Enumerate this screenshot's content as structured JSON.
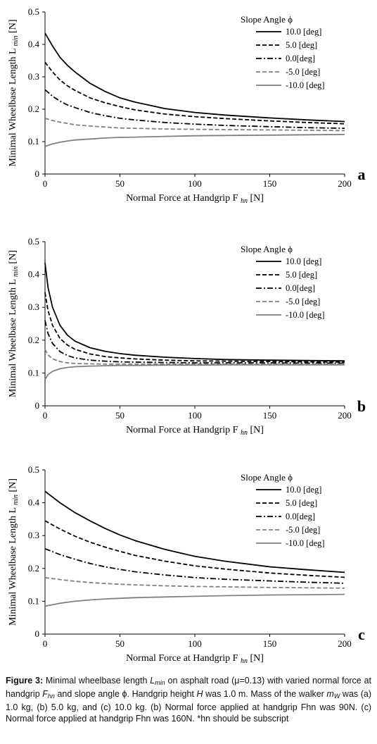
{
  "chart_data": [
    {
      "type": "line",
      "panel_label": "a",
      "xlabel": "Normal Force at Handgrip F",
      "xlabel_sub": "hn",
      "xlabel_unit": "[N]",
      "ylabel": "Minimal Wheelbase Length L",
      "ylabel_sub": "min",
      "ylabel_unit": "[N]",
      "xlim": [
        0,
        200
      ],
      "ylim": [
        0,
        0.5
      ],
      "xticks": [
        0,
        50,
        100,
        150,
        200
      ],
      "yticks": [
        0,
        0.1,
        0.2,
        0.3,
        0.4,
        0.5
      ],
      "legend_title": "Slope Angle ϕ",
      "legend_position": "top-right",
      "grid": false,
      "x": [
        0,
        5,
        10,
        15,
        20,
        30,
        40,
        50,
        60,
        80,
        100,
        120,
        150,
        175,
        200
      ],
      "series": [
        {
          "name": "10.0 [deg]",
          "style": "solid",
          "color": "#000000",
          "values": [
            0.435,
            0.395,
            0.36,
            0.335,
            0.315,
            0.28,
            0.255,
            0.235,
            0.222,
            0.202,
            0.19,
            0.182,
            0.173,
            0.167,
            0.162
          ]
        },
        {
          "name": "5.0 [deg]",
          "style": "dashed",
          "color": "#000000",
          "values": [
            0.345,
            0.315,
            0.29,
            0.272,
            0.258,
            0.235,
            0.22,
            0.208,
            0.198,
            0.185,
            0.177,
            0.171,
            0.164,
            0.159,
            0.155
          ]
        },
        {
          "name": "0.0[deg]",
          "style": "dashdot",
          "color": "#000000",
          "values": [
            0.26,
            0.24,
            0.225,
            0.213,
            0.205,
            0.19,
            0.18,
            0.172,
            0.167,
            0.159,
            0.154,
            0.15,
            0.146,
            0.143,
            0.141
          ]
        },
        {
          "name": "-5.0 [deg]",
          "style": "dashed",
          "color": "#808080",
          "values": [
            0.172,
            0.165,
            0.16,
            0.156,
            0.152,
            0.148,
            0.145,
            0.142,
            0.141,
            0.139,
            0.138,
            0.137,
            0.136,
            0.135,
            0.134
          ]
        },
        {
          "name": "-10.0 [deg]",
          "style": "solid",
          "color": "#808080",
          "values": [
            0.085,
            0.093,
            0.098,
            0.102,
            0.105,
            0.108,
            0.111,
            0.113,
            0.114,
            0.116,
            0.118,
            0.119,
            0.12,
            0.121,
            0.122
          ]
        }
      ]
    },
    {
      "type": "line",
      "panel_label": "b",
      "xlabel": "Normal Force at Handgrip F",
      "xlabel_sub": "hn",
      "xlabel_unit": "[N]",
      "ylabel": "Minimal Wheelbase Length L",
      "ylabel_sub": "min",
      "ylabel_unit": "[N]",
      "xlim": [
        0,
        200
      ],
      "ylim": [
        0,
        0.5
      ],
      "xticks": [
        0,
        50,
        100,
        150,
        200
      ],
      "yticks": [
        0,
        0.1,
        0.2,
        0.3,
        0.4,
        0.5
      ],
      "legend_title": "Slope Angle ϕ",
      "legend_position": "top-right",
      "grid": false,
      "x": [
        0,
        2,
        5,
        10,
        15,
        20,
        30,
        40,
        50,
        60,
        80,
        100,
        120,
        150,
        175,
        200
      ],
      "series": [
        {
          "name": "10.0 [deg]",
          "style": "solid",
          "color": "#000000",
          "values": [
            0.435,
            0.36,
            0.3,
            0.245,
            0.215,
            0.197,
            0.177,
            0.166,
            0.159,
            0.154,
            0.148,
            0.144,
            0.141,
            0.139,
            0.138,
            0.137
          ]
        },
        {
          "name": "5.0 [deg]",
          "style": "dashed",
          "color": "#000000",
          "values": [
            0.345,
            0.29,
            0.245,
            0.205,
            0.185,
            0.172,
            0.158,
            0.15,
            0.146,
            0.143,
            0.139,
            0.137,
            0.136,
            0.135,
            0.134,
            0.133
          ]
        },
        {
          "name": "0.0[deg]",
          "style": "dashdot",
          "color": "#000000",
          "values": [
            0.26,
            0.22,
            0.19,
            0.165,
            0.153,
            0.146,
            0.139,
            0.136,
            0.134,
            0.133,
            0.132,
            0.131,
            0.131,
            0.131,
            0.13,
            0.13
          ]
        },
        {
          "name": "-5.0 [deg]",
          "style": "dashed",
          "color": "#808080",
          "values": [
            0.172,
            0.155,
            0.143,
            0.135,
            0.131,
            0.129,
            0.128,
            0.127,
            0.127,
            0.127,
            0.127,
            0.127,
            0.127,
            0.127,
            0.127,
            0.127
          ]
        },
        {
          "name": "-10.0 [deg]",
          "style": "solid",
          "color": "#808080",
          "values": [
            0.08,
            0.095,
            0.105,
            0.113,
            0.117,
            0.119,
            0.121,
            0.122,
            0.123,
            0.123,
            0.124,
            0.124,
            0.125,
            0.125,
            0.125,
            0.125
          ]
        }
      ]
    },
    {
      "type": "line",
      "panel_label": "c",
      "xlabel": "Normal Force at Handgrip F",
      "xlabel_sub": "hn",
      "xlabel_unit": "[N]",
      "ylabel": "Minimal Wheelbase Length L",
      "ylabel_sub": "min",
      "ylabel_unit": "[N]",
      "xlim": [
        0,
        200
      ],
      "ylim": [
        0,
        0.5
      ],
      "xticks": [
        0,
        50,
        100,
        150,
        200
      ],
      "yticks": [
        0,
        0.1,
        0.2,
        0.3,
        0.4,
        0.5
      ],
      "legend_title": "Slope Angle ϕ",
      "legend_position": "top-right",
      "grid": false,
      "x": [
        0,
        10,
        20,
        30,
        40,
        50,
        60,
        80,
        100,
        120,
        150,
        175,
        200
      ],
      "series": [
        {
          "name": "10.0 [deg]",
          "style": "solid",
          "color": "#000000",
          "values": [
            0.435,
            0.4,
            0.37,
            0.345,
            0.322,
            0.302,
            0.285,
            0.258,
            0.237,
            0.222,
            0.205,
            0.196,
            0.188
          ]
        },
        {
          "name": "5.0 [deg]",
          "style": "dashed",
          "color": "#000000",
          "values": [
            0.345,
            0.32,
            0.298,
            0.28,
            0.265,
            0.252,
            0.24,
            0.222,
            0.208,
            0.198,
            0.186,
            0.179,
            0.173
          ]
        },
        {
          "name": "0.0[deg]",
          "style": "dashdot",
          "color": "#000000",
          "values": [
            0.26,
            0.242,
            0.228,
            0.215,
            0.205,
            0.197,
            0.19,
            0.18,
            0.172,
            0.167,
            0.162,
            0.158,
            0.155
          ]
        },
        {
          "name": "-5.0 [deg]",
          "style": "dashed",
          "color": "#808080",
          "values": [
            0.172,
            0.166,
            0.161,
            0.157,
            0.154,
            0.152,
            0.15,
            0.147,
            0.145,
            0.144,
            0.142,
            0.141,
            0.14
          ]
        },
        {
          "name": "-10.0 [deg]",
          "style": "solid",
          "color": "#808080",
          "values": [
            0.085,
            0.094,
            0.1,
            0.104,
            0.107,
            0.109,
            0.111,
            0.113,
            0.115,
            0.117,
            0.119,
            0.12,
            0.121
          ]
        }
      ]
    }
  ],
  "caption": {
    "label": "Figure 3:",
    "p1": " Minimal wheelbase length ",
    "lmin_main": "L",
    "lmin_sub": "min",
    "p2": " on asphalt road (μ=0.13) with varied normal force at handgrip ",
    "f_main": "F",
    "f_sub": "hn",
    "p3": " and slope angle ϕ. Handgrip height ",
    "h": "H",
    "p4": " was 1.0 m. Mass of the walker ",
    "m_main": "m",
    "m_sub": "W",
    "p5": " was (a) 1.0 kg, (b) 5.0 kg, and (c) 10.0 kg. (b) Normal force applied at handgrip Fhn was 90N. (c) Normal force applied at handgrip Fhn was 160N. *hn should be subscript"
  }
}
